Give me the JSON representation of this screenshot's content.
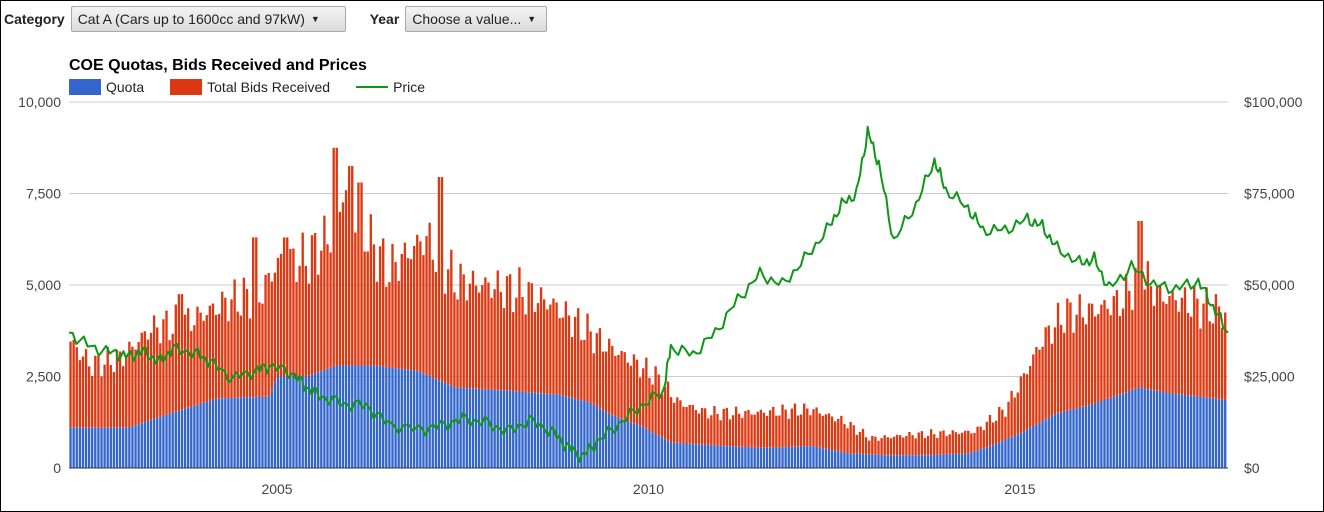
{
  "controls": {
    "category_label": "Category",
    "category_value": "Cat A (Cars up to 1600cc and 97kW)",
    "year_label": "Year",
    "year_value": "Choose a value..."
  },
  "colors": {
    "quota": "#3366cc",
    "bids": "#dc3912",
    "price": "#109618"
  },
  "chart_data": {
    "type": "bar",
    "title": "COE Quotas, Bids Received and Prices",
    "legend": [
      "Quota",
      "Total Bids Received",
      "Price"
    ],
    "legend_position": "top-left",
    "grid": true,
    "x_range": [
      2002.2,
      2017.8
    ],
    "x_ticks": [
      {
        "value": 2005,
        "label": "2005"
      },
      {
        "value": 2010,
        "label": "2010"
      },
      {
        "value": 2015,
        "label": "2015"
      }
    ],
    "left_axis": {
      "range": [
        0,
        10000
      ],
      "ticks": [
        {
          "value": 0,
          "label": "0"
        },
        {
          "value": 2500,
          "label": "2,500"
        },
        {
          "value": 5000,
          "label": "5,000"
        },
        {
          "value": 7500,
          "label": "7,500"
        },
        {
          "value": 10000,
          "label": "10,000"
        }
      ]
    },
    "right_axis": {
      "range": [
        0,
        100000
      ],
      "ticks": [
        {
          "value": 0,
          "label": "$0"
        },
        {
          "value": 25000,
          "label": "$25,000"
        },
        {
          "value": 50000,
          "label": "$50,000"
        },
        {
          "value": 75000,
          "label": "$75,000"
        },
        {
          "value": 100000,
          "label": "$100,000"
        }
      ]
    },
    "quota_points": [
      [
        2002.2,
        1100
      ],
      [
        2003.0,
        1100
      ],
      [
        2003.5,
        1450
      ],
      [
        2004.2,
        1900
      ],
      [
        2004.9,
        1950
      ],
      [
        2005.0,
        2500
      ],
      [
        2005.4,
        2500
      ],
      [
        2005.8,
        2800
      ],
      [
        2006.3,
        2800
      ],
      [
        2006.9,
        2650
      ],
      [
        2007.4,
        2200
      ],
      [
        2008.2,
        2100
      ],
      [
        2008.8,
        2000
      ],
      [
        2009.2,
        1800
      ],
      [
        2009.5,
        1450
      ],
      [
        2009.9,
        1150
      ],
      [
        2010.3,
        700
      ],
      [
        2011.0,
        600
      ],
      [
        2011.6,
        550
      ],
      [
        2012.2,
        600
      ],
      [
        2012.7,
        400
      ],
      [
        2013.2,
        350
      ],
      [
        2013.8,
        350
      ],
      [
        2014.3,
        400
      ],
      [
        2014.6,
        600
      ],
      [
        2015.0,
        950
      ],
      [
        2015.5,
        1500
      ],
      [
        2015.9,
        1700
      ],
      [
        2016.2,
        1900
      ],
      [
        2016.6,
        2200
      ],
      [
        2017.0,
        2050
      ],
      [
        2017.4,
        1950
      ],
      [
        2017.8,
        1850
      ]
    ],
    "bids_points": [
      [
        2002.2,
        3500
      ],
      [
        2002.5,
        2800
      ],
      [
        2002.9,
        3000
      ],
      [
        2003.3,
        3800
      ],
      [
        2003.8,
        4000
      ],
      [
        2004.3,
        4500
      ],
      [
        2004.8,
        4800
      ],
      [
        2005.0,
        5600
      ],
      [
        2005.4,
        5700
      ],
      [
        2005.7,
        6300
      ],
      [
        2005.9,
        7600
      ],
      [
        2006.1,
        6700
      ],
      [
        2006.5,
        5400
      ],
      [
        2007.0,
        6300
      ],
      [
        2007.4,
        5100
      ],
      [
        2007.8,
        5000
      ],
      [
        2008.3,
        4800
      ],
      [
        2008.7,
        4500
      ],
      [
        2009.0,
        4000
      ],
      [
        2009.4,
        3400
      ],
      [
        2009.8,
        2900
      ],
      [
        2010.1,
        2500
      ],
      [
        2010.4,
        1800
      ],
      [
        2010.8,
        1500
      ],
      [
        2011.3,
        1500
      ],
      [
        2011.8,
        1550
      ],
      [
        2012.2,
        1600
      ],
      [
        2012.6,
        1300
      ],
      [
        2013.0,
        800
      ],
      [
        2013.5,
        900
      ],
      [
        2014.0,
        950
      ],
      [
        2014.4,
        1000
      ],
      [
        2014.8,
        1600
      ],
      [
        2015.0,
        2300
      ],
      [
        2015.3,
        3500
      ],
      [
        2015.6,
        4200
      ],
      [
        2016.0,
        4300
      ],
      [
        2016.4,
        4600
      ],
      [
        2016.6,
        5300
      ],
      [
        2016.9,
        4700
      ],
      [
        2017.3,
        4500
      ],
      [
        2017.8,
        4200
      ]
    ],
    "bids_spikes": [
      [
        2003.7,
        4750
      ],
      [
        2004.7,
        6300
      ],
      [
        2005.1,
        6300
      ],
      [
        2005.8,
        8750
      ],
      [
        2006.0,
        8250
      ],
      [
        2006.1,
        7800
      ],
      [
        2007.2,
        7950
      ],
      [
        2016.6,
        6750
      ]
    ],
    "price_series": [
      [
        2002.2,
        37000
      ],
      [
        2002.5,
        33000
      ],
      [
        2002.8,
        31500
      ],
      [
        2003.0,
        30500
      ],
      [
        2003.2,
        32000
      ],
      [
        2003.4,
        29000
      ],
      [
        2003.6,
        32500
      ],
      [
        2003.9,
        31500
      ],
      [
        2004.1,
        29000
      ],
      [
        2004.4,
        24500
      ],
      [
        2004.7,
        26500
      ],
      [
        2004.9,
        28000
      ],
      [
        2005.2,
        26000
      ],
      [
        2005.4,
        22000
      ],
      [
        2005.6,
        19500
      ],
      [
        2005.9,
        17500
      ],
      [
        2006.2,
        17000
      ],
      [
        2006.5,
        12000
      ],
      [
        2006.9,
        10500
      ],
      [
        2007.2,
        11500
      ],
      [
        2007.5,
        13500
      ],
      [
        2007.8,
        12500
      ],
      [
        2008.1,
        10000
      ],
      [
        2008.4,
        13000
      ],
      [
        2008.7,
        10000
      ],
      [
        2008.9,
        6000
      ],
      [
        2009.1,
        3000
      ],
      [
        2009.3,
        7000
      ],
      [
        2009.6,
        12000
      ],
      [
        2009.9,
        17000
      ],
      [
        2010.2,
        21000
      ],
      [
        2010.3,
        33000
      ],
      [
        2010.6,
        31000
      ],
      [
        2010.9,
        37000
      ],
      [
        2011.2,
        46000
      ],
      [
        2011.5,
        53000
      ],
      [
        2011.8,
        50000
      ],
      [
        2012.1,
        57000
      ],
      [
        2012.4,
        65000
      ],
      [
        2012.6,
        72000
      ],
      [
        2012.8,
        75000
      ],
      [
        2012.95,
        92000
      ],
      [
        2013.1,
        83000
      ],
      [
        2013.3,
        62000
      ],
      [
        2013.6,
        72000
      ],
      [
        2013.85,
        84000
      ],
      [
        2014.0,
        76000
      ],
      [
        2014.3,
        71000
      ],
      [
        2014.5,
        65000
      ],
      [
        2014.8,
        65000
      ],
      [
        2015.1,
        68000
      ],
      [
        2015.3,
        66000
      ],
      [
        2015.5,
        60000
      ],
      [
        2015.8,
        56000
      ],
      [
        2016.0,
        57000
      ],
      [
        2016.2,
        49000
      ],
      [
        2016.5,
        55000
      ],
      [
        2016.8,
        50000
      ],
      [
        2017.1,
        49000
      ],
      [
        2017.4,
        51000
      ],
      [
        2017.6,
        44000
      ],
      [
        2017.8,
        37000
      ]
    ]
  }
}
